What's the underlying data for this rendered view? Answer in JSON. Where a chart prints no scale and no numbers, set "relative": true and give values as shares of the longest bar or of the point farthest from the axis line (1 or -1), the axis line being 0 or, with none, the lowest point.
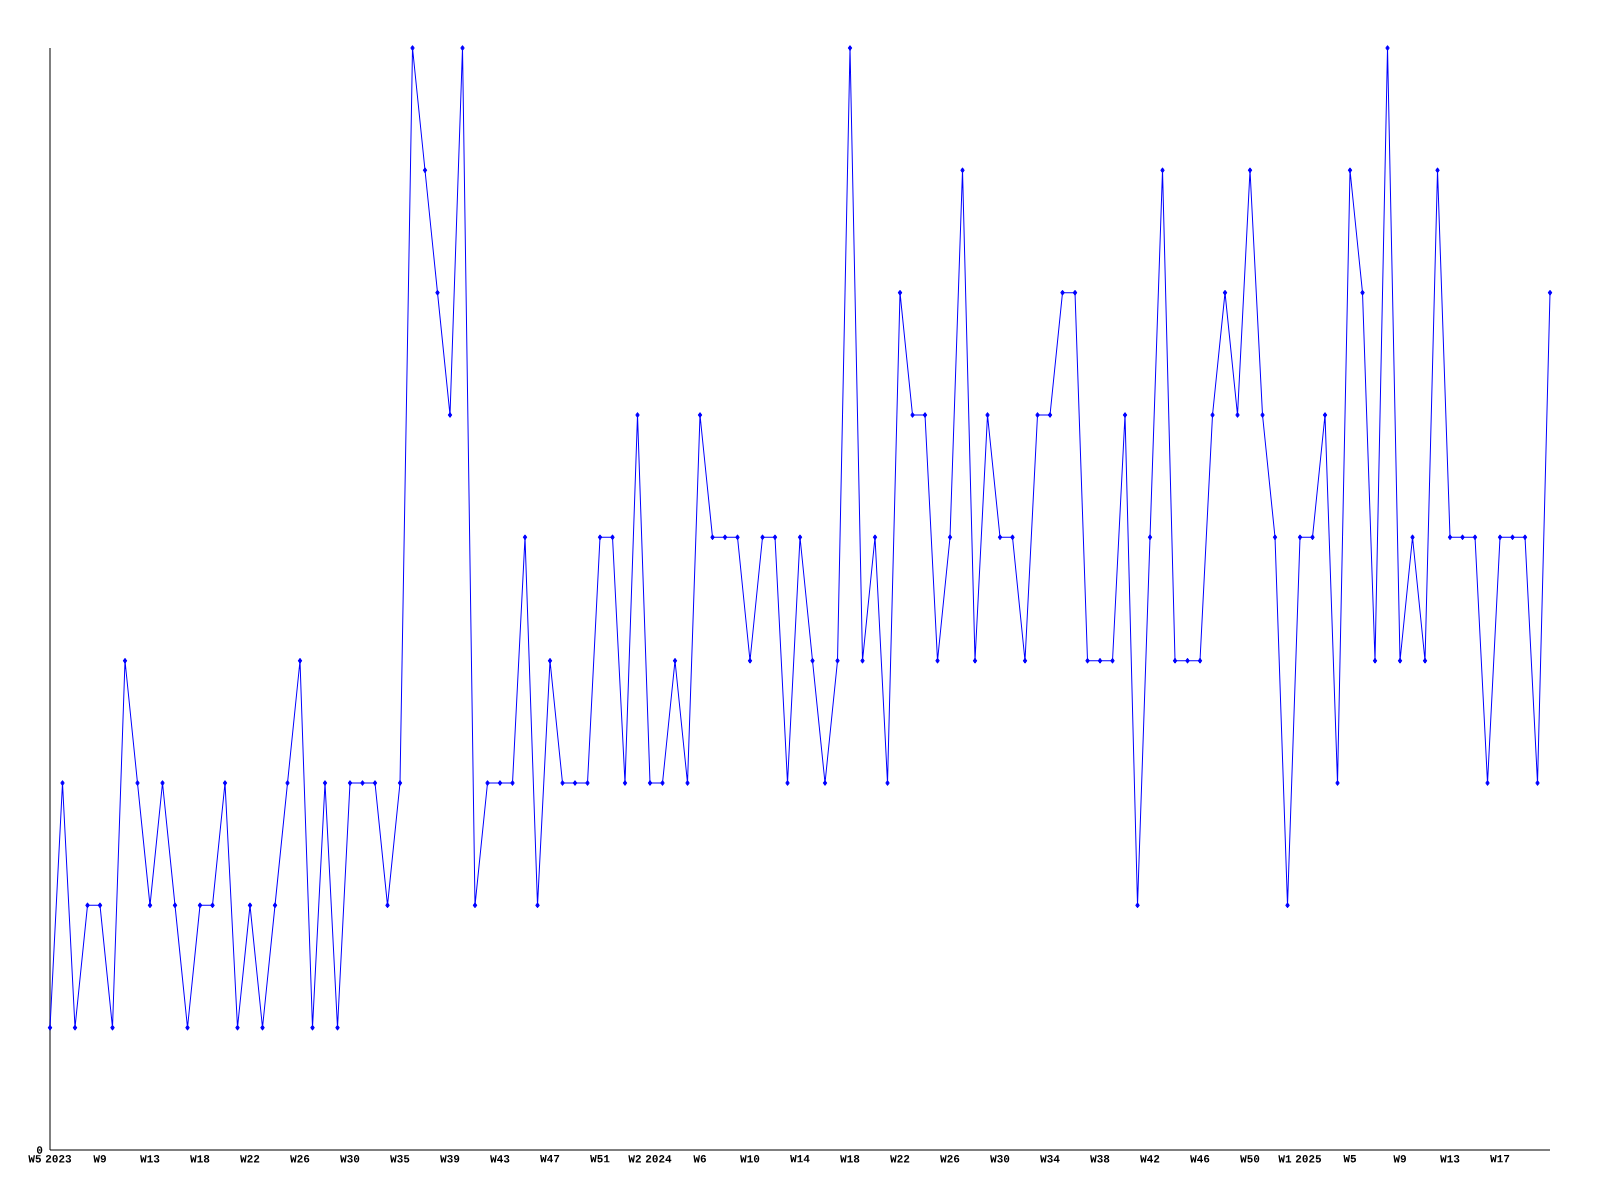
{
  "chart_data": {
    "type": "line",
    "relative": true,
    "color": "#0000ff",
    "marker": "diamond",
    "line_style": "solid",
    "grid": false,
    "annotations": [
      "0"
    ],
    "categories": [
      "W5 2023",
      null,
      null,
      null,
      "W9",
      null,
      null,
      null,
      "W13",
      null,
      null,
      null,
      "W18",
      null,
      null,
      null,
      "W22",
      null,
      null,
      null,
      "W26",
      null,
      null,
      null,
      "W30",
      null,
      null,
      null,
      "W35",
      null,
      null,
      null,
      "W39",
      null,
      null,
      null,
      "W43",
      null,
      null,
      null,
      "W47",
      null,
      null,
      null,
      "W51",
      null,
      null,
      null,
      "W2 2024",
      null,
      null,
      null,
      "W6",
      null,
      null,
      null,
      "W10",
      null,
      null,
      null,
      "W14",
      null,
      null,
      null,
      "W18",
      null,
      null,
      null,
      "W22",
      null,
      null,
      null,
      "W26",
      null,
      null,
      null,
      "W30",
      null,
      null,
      null,
      "W34",
      null,
      null,
      null,
      "W38",
      null,
      null,
      null,
      "W42",
      null,
      null,
      null,
      "W46",
      null,
      null,
      null,
      "W50",
      null,
      null,
      null,
      "W1 2025",
      null,
      null,
      null,
      "W5",
      null,
      null,
      null,
      "W9",
      null,
      null,
      null,
      "W13",
      null,
      null,
      null,
      "W17",
      null,
      null,
      null,
      null
    ],
    "values": [
      0.111,
      0.333,
      0.111,
      0.222,
      0.222,
      0.111,
      0.444,
      0.333,
      0.222,
      0.333,
      0.222,
      0.111,
      0.222,
      0.222,
      0.333,
      0.111,
      0.222,
      0.111,
      0.222,
      0.333,
      0.444,
      0.111,
      0.333,
      0.111,
      0.333,
      0.333,
      0.333,
      0.222,
      0.333,
      1,
      0.889,
      0.778,
      0.667,
      1,
      0.222,
      0.333,
      0.333,
      0.333,
      0.556,
      0.222,
      0.444,
      0.333,
      0.333,
      0.333,
      0.556,
      0.556,
      0.333,
      0.667,
      0.333,
      0.333,
      0.444,
      0.333,
      0.667,
      0.556,
      0.556,
      0.556,
      0.444,
      0.556,
      0.556,
      0.333,
      0.556,
      0.444,
      0.333,
      0.444,
      1,
      0.444,
      0.556,
      0.333,
      0.778,
      0.667,
      0.667,
      0.444,
      0.556,
      0.889,
      0.444,
      0.667,
      0.556,
      0.556,
      0.444,
      0.667,
      0.667,
      0.778,
      0.778,
      0.444,
      0.444,
      0.444,
      0.667,
      0.222,
      0.556,
      0.889,
      0.444,
      0.444,
      0.444,
      0.667,
      0.778,
      0.667,
      0.889,
      0.667,
      0.556,
      0.222,
      0.556,
      0.556,
      0.667,
      0.333,
      0.889,
      0.778,
      0.444,
      1,
      0.444,
      0.556,
      0.444,
      0.889,
      0.556,
      0.556,
      0.556,
      0.333,
      0.556,
      0.556,
      0.556,
      0.333,
      0.778
    ]
  }
}
